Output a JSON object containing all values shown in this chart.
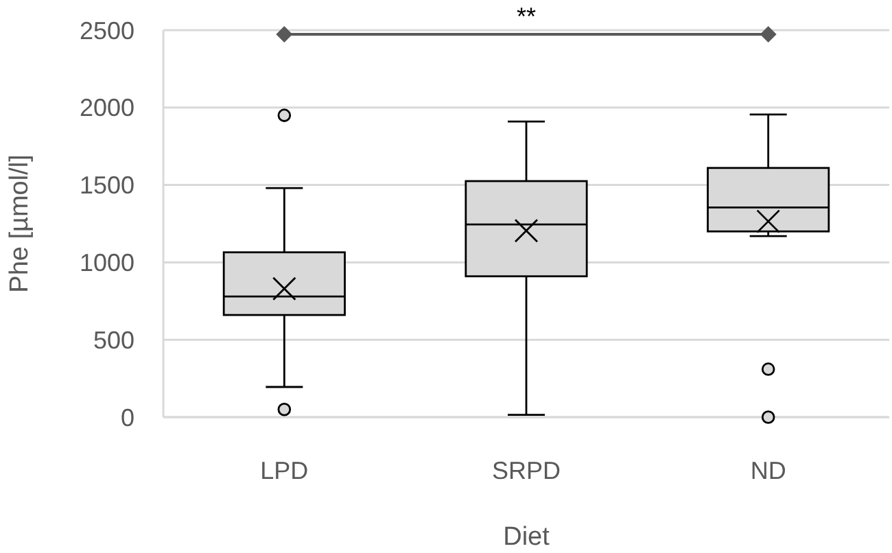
{
  "chart_data": {
    "type": "box",
    "xlabel": "Diet",
    "ylabel": "Phe [µmol/l]",
    "categories": [
      "LPD",
      "SRPD",
      "ND"
    ],
    "boxes": [
      {
        "low": 195,
        "q1": 660,
        "median": 780,
        "q3": 1065,
        "high": 1480,
        "mean": 830,
        "outliers": [
          1950,
          50
        ]
      },
      {
        "low": 15,
        "q1": 910,
        "median": 1245,
        "q3": 1525,
        "high": 1910,
        "mean": 1205
      },
      {
        "low": 1170,
        "q1": 1200,
        "median": 1355,
        "q3": 1610,
        "high": 1955,
        "mean": 1265,
        "outliers": [
          310,
          0
        ]
      }
    ],
    "color": "#d9d9d9",
    "ylim": [
      0,
      2500
    ],
    "yticks": [
      0,
      500,
      1000,
      1500,
      2000,
      2500
    ],
    "grid": "y",
    "marker": "circle",
    "annotations": [
      "**"
    ]
  }
}
